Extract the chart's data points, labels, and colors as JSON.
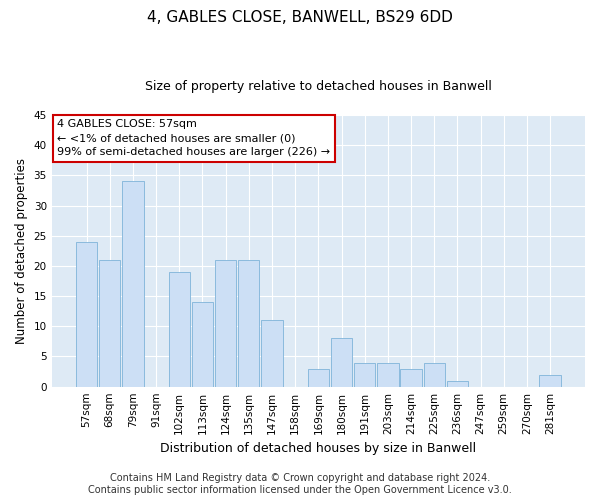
{
  "title": "4, GABLES CLOSE, BANWELL, BS29 6DD",
  "subtitle": "Size of property relative to detached houses in Banwell",
  "xlabel": "Distribution of detached houses by size in Banwell",
  "ylabel": "Number of detached properties",
  "bar_color": "#ccdff5",
  "bar_edge_color": "#7fb3d9",
  "background_color": "#ffffff",
  "grid_color": "#ffffff",
  "plot_bg_color": "#deeaf5",
  "categories": [
    "57sqm",
    "68sqm",
    "79sqm",
    "91sqm",
    "102sqm",
    "113sqm",
    "124sqm",
    "135sqm",
    "147sqm",
    "158sqm",
    "169sqm",
    "180sqm",
    "191sqm",
    "203sqm",
    "214sqm",
    "225sqm",
    "236sqm",
    "247sqm",
    "259sqm",
    "270sqm",
    "281sqm"
  ],
  "values": [
    24,
    21,
    34,
    0,
    19,
    14,
    21,
    21,
    11,
    0,
    3,
    8,
    4,
    4,
    3,
    4,
    1,
    0,
    0,
    0,
    2
  ],
  "ylim": [
    0,
    45
  ],
  "yticks": [
    0,
    5,
    10,
    15,
    20,
    25,
    30,
    35,
    40,
    45
  ],
  "annotation_title": "4 GABLES CLOSE: 57sqm",
  "annotation_line1": "← <1% of detached houses are smaller (0)",
  "annotation_line2": "99% of semi-detached houses are larger (226) →",
  "annotation_box_color": "#ffffff",
  "annotation_box_edge_color": "#cc0000",
  "footer_line1": "Contains HM Land Registry data © Crown copyright and database right 2024.",
  "footer_line2": "Contains public sector information licensed under the Open Government Licence v3.0.",
  "highlight_bar_index": 0,
  "highlight_bar_edge_color": "#cc0000",
  "title_fontsize": 11,
  "subtitle_fontsize": 9,
  "ylabel_fontsize": 8.5,
  "xlabel_fontsize": 9,
  "tick_fontsize": 7.5,
  "annotation_fontsize": 8,
  "footer_fontsize": 7
}
